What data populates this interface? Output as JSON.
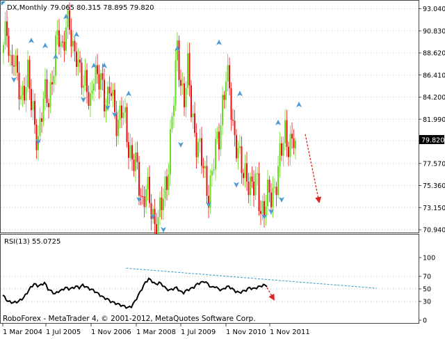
{
  "header": {
    "symbol_label": "DX,Monthly",
    "ohlc_label": "79.065 80.315 78.895 79.820"
  },
  "price_axis": {
    "ticks": [
      "93.040",
      "90.830",
      "88.620",
      "86.410",
      "84.200",
      "81.990",
      "79.820",
      "77.570",
      "75.360",
      "73.150",
      "70.940"
    ],
    "current_price": "79.820"
  },
  "rsi": {
    "label": "RSI(13) 55.0725",
    "levels": [
      "100",
      "70",
      "50",
      "30",
      "0"
    ]
  },
  "time_axis": {
    "labels": [
      "1 Mar 2004",
      "1 Jul 2005",
      "1 Nov 2006",
      "1 Mar 2008",
      "1 Jul 2009",
      "1 Nov 2010",
      "1 Nov 2011"
    ]
  },
  "footer": {
    "copyright": "RoboForex - MetaTrader 4, © 2001-2012, MetaQuotes Software Corp."
  },
  "colors": {
    "bull": "#66dd22",
    "bear": "#ee1111",
    "grid": "#bbbbbb",
    "fractal": "#4a9bd8",
    "trendline": "#3399cc",
    "forecast_arrow": "#dd2222",
    "rsi_line": "#000000"
  },
  "chart_data": [
    {
      "type": "candlestick",
      "symbol": "DX",
      "timeframe": "Monthly",
      "ylim": [
        70.94,
        93.04
      ],
      "ohlc_last": {
        "open": 79.065,
        "high": 80.315,
        "low": 78.895,
        "close": 79.82
      },
      "anchors": [
        [
          0,
          88.6
        ],
        [
          2,
          90.8
        ],
        [
          4,
          88.0
        ],
        [
          6,
          88.6
        ],
        [
          8,
          85.2
        ],
        [
          10,
          84.0
        ],
        [
          12,
          85.8
        ],
        [
          14,
          86.5
        ],
        [
          16,
          83.0
        ],
        [
          18,
          81.5
        ],
        [
          20,
          80.5
        ],
        [
          22,
          82.5
        ],
        [
          24,
          84.0
        ],
        [
          26,
          84.5
        ],
        [
          28,
          86.2
        ],
        [
          30,
          88.8
        ],
        [
          32,
          90.0
        ],
        [
          34,
          89.4
        ],
        [
          36,
          92.0
        ],
        [
          38,
          90.5
        ],
        [
          40,
          88.5
        ],
        [
          42,
          89.4
        ],
        [
          44,
          86.8
        ],
        [
          46,
          84.6
        ],
        [
          48,
          85.5
        ],
        [
          50,
          84.2
        ],
        [
          52,
          86.5
        ],
        [
          54,
          85.0
        ],
        [
          56,
          86.8
        ],
        [
          58,
          84.5
        ],
        [
          60,
          83.4
        ],
        [
          62,
          84.7
        ],
        [
          64,
          83.0
        ],
        [
          66,
          82.0
        ],
        [
          68,
          82.5
        ],
        [
          70,
          81.5
        ],
        [
          72,
          79.8
        ],
        [
          74,
          78.2
        ],
        [
          76,
          77.0
        ],
        [
          78,
          75.5
        ],
        [
          80,
          74.0
        ],
        [
          82,
          75.5
        ],
        [
          84,
          73.0
        ],
        [
          86,
          72.2
        ],
        [
          88,
          71.5
        ],
        [
          90,
          72.8
        ],
        [
          92,
          73.5
        ],
        [
          94,
          76.0
        ],
        [
          96,
          80.5
        ],
        [
          98,
          84.0
        ],
        [
          100,
          88.5
        ],
        [
          102,
          86.0
        ],
        [
          104,
          84.5
        ],
        [
          106,
          86.5
        ],
        [
          108,
          83.0
        ],
        [
          110,
          81.0
        ],
        [
          112,
          79.5
        ],
        [
          114,
          77.5
        ],
        [
          116,
          76.0
        ],
        [
          118,
          75.0
        ],
        [
          120,
          76.5
        ],
        [
          122,
          78.5
        ],
        [
          124,
          80.5
        ],
        [
          126,
          84.0
        ],
        [
          128,
          86.0
        ],
        [
          130,
          84.5
        ],
        [
          132,
          81.5
        ],
        [
          134,
          80.0
        ],
        [
          136,
          77.5
        ],
        [
          138,
          76.0
        ],
        [
          140,
          77.0
        ],
        [
          142,
          75.5
        ],
        [
          144,
          74.8
        ],
        [
          146,
          75.5
        ],
        [
          148,
          73.5
        ],
        [
          150,
          73.0
        ],
        [
          152,
          73.8
        ],
        [
          154,
          74.5
        ],
        [
          156,
          75.5
        ],
        [
          158,
          76.8
        ],
        [
          160,
          78.5
        ],
        [
          162,
          81.0
        ],
        [
          164,
          80.0
        ],
        [
          166,
          79.2
        ],
        [
          168,
          79.82
        ]
      ],
      "up_fractals": [
        [
          16,
          89.8
        ],
        [
          24,
          89.3
        ],
        [
          30,
          88.2
        ],
        [
          36,
          92.2
        ],
        [
          42,
          90.4
        ],
        [
          52,
          87.3
        ],
        [
          58,
          87.3
        ],
        [
          72,
          84.5
        ],
        [
          100,
          89.0
        ],
        [
          124,
          89.6
        ],
        [
          136,
          84.5
        ],
        [
          158,
          81.6
        ],
        [
          170,
          83.4
        ]
      ],
      "down_fractals": [
        [
          6,
          86.0
        ],
        [
          20,
          79.8
        ],
        [
          46,
          84.0
        ],
        [
          60,
          83.2
        ],
        [
          64,
          82.5
        ],
        [
          78,
          74.0
        ],
        [
          86,
          72.3
        ],
        [
          92,
          71.0
        ],
        [
          102,
          79.5
        ],
        [
          118,
          73.5
        ],
        [
          134,
          75.5
        ],
        [
          150,
          72.3
        ],
        [
          154,
          72.8
        ],
        [
          160,
          74.0
        ]
      ],
      "forecast_arrow": {
        "from": [
          174,
          80.5
        ],
        "to": [
          182,
          73.7
        ]
      }
    },
    {
      "type": "line",
      "indicator": "RSI",
      "period": 13,
      "last_value": 55.0725,
      "ylim": [
        0,
        100
      ],
      "levels": [
        30,
        50,
        70
      ],
      "anchors": [
        [
          0,
          40
        ],
        [
          3,
          30
        ],
        [
          6,
          28
        ],
        [
          9,
          30
        ],
        [
          12,
          36
        ],
        [
          14,
          44
        ],
        [
          16,
          52
        ],
        [
          18,
          58
        ],
        [
          20,
          55
        ],
        [
          22,
          56
        ],
        [
          24,
          60
        ],
        [
          26,
          50
        ],
        [
          28,
          46
        ],
        [
          30,
          42
        ],
        [
          32,
          46
        ],
        [
          34,
          48
        ],
        [
          36,
          52
        ],
        [
          38,
          50
        ],
        [
          40,
          51
        ],
        [
          42,
          54
        ],
        [
          44,
          52
        ],
        [
          46,
          56
        ],
        [
          48,
          53
        ],
        [
          50,
          50
        ],
        [
          52,
          48
        ],
        [
          54,
          44
        ],
        [
          56,
          40
        ],
        [
          58,
          36
        ],
        [
          60,
          34
        ],
        [
          62,
          30
        ],
        [
          64,
          28
        ],
        [
          66,
          26
        ],
        [
          68,
          24
        ],
        [
          70,
          22
        ],
        [
          72,
          20
        ],
        [
          74,
          22
        ],
        [
          76,
          30
        ],
        [
          78,
          40
        ],
        [
          80,
          50
        ],
        [
          82,
          60
        ],
        [
          84,
          66
        ],
        [
          86,
          62
        ],
        [
          88,
          57
        ],
        [
          90,
          60
        ],
        [
          92,
          56
        ],
        [
          94,
          50
        ],
        [
          96,
          48
        ],
        [
          98,
          50
        ],
        [
          100,
          52
        ],
        [
          102,
          46
        ],
        [
          104,
          44
        ],
        [
          106,
          48
        ],
        [
          108,
          50
        ],
        [
          110,
          53
        ],
        [
          112,
          58
        ],
        [
          114,
          60
        ],
        [
          116,
          62
        ],
        [
          118,
          58
        ],
        [
          120,
          52
        ],
        [
          122,
          54
        ],
        [
          124,
          50
        ],
        [
          126,
          48
        ],
        [
          128,
          52
        ],
        [
          130,
          54
        ],
        [
          132,
          50
        ],
        [
          134,
          46
        ],
        [
          136,
          44
        ],
        [
          138,
          46
        ],
        [
          140,
          48
        ],
        [
          142,
          52
        ],
        [
          144,
          50
        ],
        [
          146,
          52
        ],
        [
          148,
          54
        ],
        [
          150,
          56
        ],
        [
          152,
          55
        ]
      ],
      "trendline": {
        "from": [
          71,
          83
        ],
        "to": [
          215,
          51
        ]
      },
      "forecast_arrow": {
        "from": [
          152,
          52
        ],
        "to": [
          156,
          33
        ]
      }
    }
  ]
}
